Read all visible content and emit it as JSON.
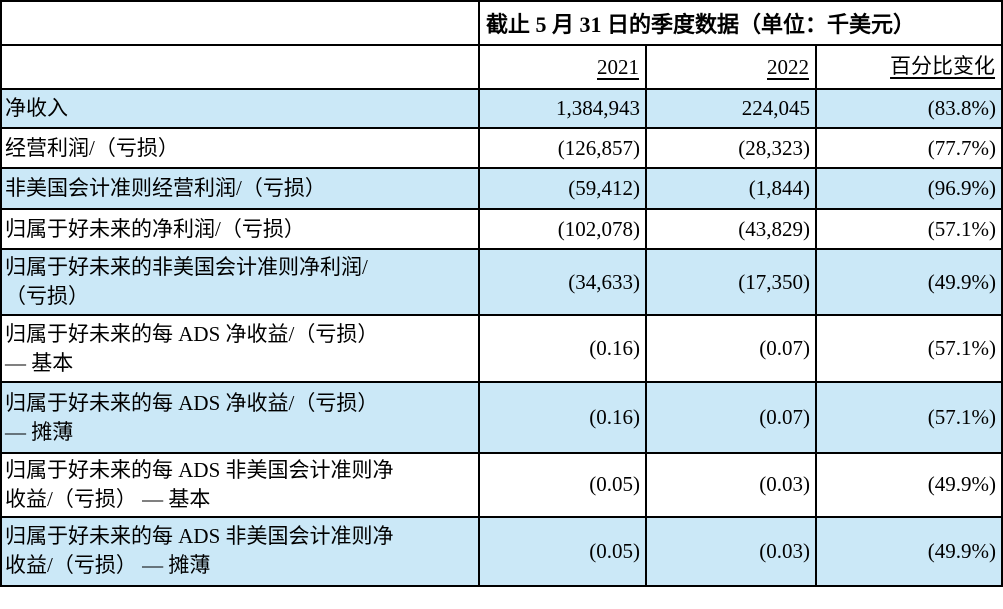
{
  "table": {
    "title": "截止 5 月 31 日的季度数据（单位：千美元）",
    "columns": [
      "2021",
      "2022",
      "百分比变化"
    ],
    "rows": [
      {
        "label": "净收入",
        "y2021": "1,384,943",
        "y2022": "224,045",
        "change": "(83.8%)",
        "shaded": true
      },
      {
        "label": "经营利润/（亏损）",
        "y2021": "(126,857)",
        "y2022": "(28,323)",
        "change": "(77.7%)",
        "shaded": false
      },
      {
        "label": "非美国会计准则经营利润/（亏损）",
        "y2021": "(59,412)",
        "y2022": "(1,844)",
        "change": "(96.9%)",
        "shaded": true
      },
      {
        "label": "归属于好未来的净利润/（亏损）",
        "y2021": "(102,078)",
        "y2022": "(43,829)",
        "change": "(57.1%)",
        "shaded": false
      },
      {
        "label": "归属于好未来的非美国会计准则净利润/\n（亏损）",
        "y2021": "(34,633)",
        "y2022": "(17,350)",
        "change": "(49.9%)",
        "shaded": true
      },
      {
        "label": "归属于好未来的每 ADS 净收益/（亏损）\n— 基本",
        "y2021": "(0.16)",
        "y2022": "(0.07)",
        "change": "(57.1%)",
        "shaded": false
      },
      {
        "label": "归属于好未来的每 ADS 净收益/（亏损）\n— 摊薄",
        "y2021": "(0.16)",
        "y2022": "(0.07)",
        "change": "(57.1%)",
        "shaded": true
      },
      {
        "label": "归属于好未来的每 ADS 非美国会计准则净\n收益/（亏损） — 基本",
        "y2021": "(0.05)",
        "y2022": "(0.03)",
        "change": "(49.9%)",
        "shaded": false
      },
      {
        "label": "归属于好未来的每 ADS 非美国会计准则净\n收益/（亏损） — 摊薄",
        "y2021": "(0.05)",
        "y2022": "(0.03)",
        "change": "(49.9%)",
        "shaded": true
      }
    ],
    "colors": {
      "row_shaded": "#cbe8f7",
      "border": "#000000",
      "text": "#000000",
      "background": "#ffffff"
    }
  }
}
